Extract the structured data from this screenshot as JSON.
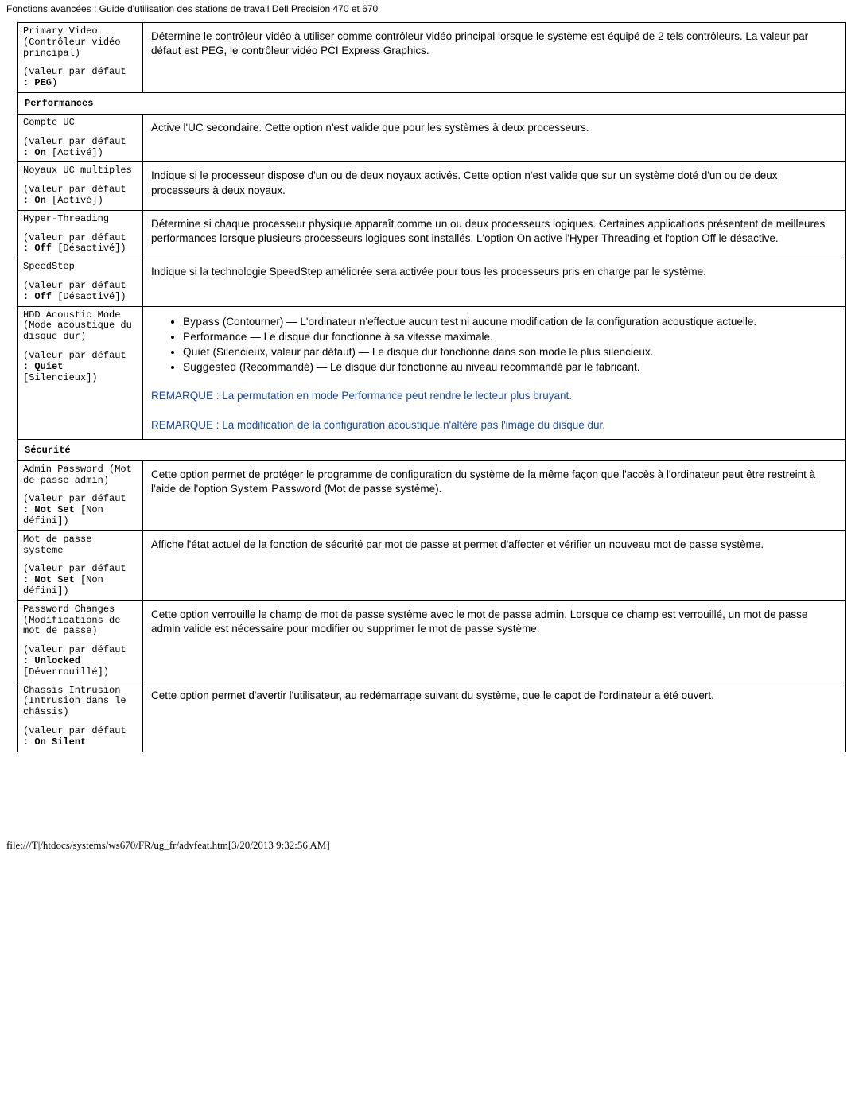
{
  "page": {
    "title": "Fonctions avancées : Guide d'utilisation des stations de travail Dell Precision 470 et 670",
    "footer": "file:///T|/htdocs/systems/ws670/FR/ug_fr/advfeat.htm[3/20/2013 9:32:56 AM]"
  },
  "sections": {
    "performances_header": "Performances",
    "securite_header": "Sécurité"
  },
  "rows": {
    "primary_video": {
      "name1": "Primary Video",
      "name2": "(Contrôleur vidéo principal)",
      "def_prefix": "(valeur par défaut : ",
      "def_value": "PEG",
      "def_suffix": ")",
      "desc": "Détermine le contrôleur vidéo à utiliser comme contrôleur vidéo principal lorsque le système est équipé de 2 tels contrôleurs. La valeur par défaut est PEG, le contrôleur vidéo PCI Express Graphics."
    },
    "compte_uc": {
      "name1": "Compte UC",
      "def_prefix": "(valeur par défaut : ",
      "def_value": "On",
      "def_suffix": " [Activé])",
      "desc": "Active l'UC secondaire. Cette option n'est valide que pour les systèmes à deux processeurs."
    },
    "noyaux_uc": {
      "name1": "Noyaux UC multiples",
      "def_prefix": "(valeur par défaut : ",
      "def_value": "On",
      "def_suffix": " [Activé])",
      "desc": "Indique si le processeur dispose d'un ou de deux noyaux activés. Cette option n'est valide que sur un système doté d'un ou de deux processeurs à deux noyaux."
    },
    "hyper_threading": {
      "name1": "Hyper-Threading",
      "def_prefix": "(valeur par défaut : ",
      "def_value": "Off",
      "def_suffix": " [Désactivé])",
      "desc": "Détermine si chaque processeur physique apparaît comme un ou deux processeurs logiques. Certaines applications présentent de meilleures performances lorsque plusieurs processeurs logiques sont installés. L'option On active l'Hyper-Threading et l'option Off le désactive."
    },
    "speedstep": {
      "name1": "SpeedStep",
      "def_prefix": "(valeur par défaut : ",
      "def_value": "Off",
      "def_suffix": " [Désactivé])",
      "desc": "Indique si la technologie SpeedStep améliorée sera activée pour tous les processeurs pris en charge par le système."
    },
    "hdd_acoustic": {
      "name1": "HDD Acoustic Mode (Mode acoustique du disque dur)",
      "def_prefix": "(valeur par défaut : ",
      "def_value": "Quiet",
      "def_suffix": " [Silencieux])",
      "opts": {
        "bypass_b": "Bypass",
        "bypass_t": " (Contourner) — L'ordinateur n'effectue aucun test ni aucune modification de la configuration acoustique actuelle.",
        "perf_b": "Performance",
        "perf_t": " — Le disque dur fonctionne à sa vitesse maximale.",
        "quiet_b": "Quiet",
        "quiet_t": " (Silencieux, valeur par défaut) — Le disque dur fonctionne dans son mode le plus silencieux.",
        "sugg_b": "Suggested",
        "sugg_t": " (Recommandé) — Le disque dur fonctionne au niveau recommandé par le fabricant."
      },
      "rem1_label": "REMARQUE :",
      "rem1_text": " La permutation en mode Performance peut rendre le lecteur plus bruyant.",
      "rem2_label": "REMARQUE :",
      "rem2_text": " La modification de la configuration acoustique n'altère pas l'image du disque dur."
    },
    "admin_pw": {
      "name1": "Admin Password (Mot de passe admin)",
      "def_prefix": "(valeur par défaut : ",
      "def_value": "Not Set",
      "def_suffix": " [Non défini])",
      "desc_a": "Cette option permet de protéger le programme de configuration du système de la même façon que l'accès à l'ordinateur peut être restreint à l'aide de l'option ",
      "desc_b": "System Password",
      "desc_c": " (Mot de passe système)."
    },
    "sys_pw": {
      "name1": "Mot de passe système",
      "def_prefix": "(valeur par défaut : ",
      "def_value": "Not Set",
      "def_suffix": " [Non défini])",
      "desc": "Affiche l'état actuel de la fonction de sécurité par mot de passe et permet d'affecter et vérifier un nouveau mot de passe système."
    },
    "pw_changes": {
      "name1": "Password Changes (Modifications de mot de passe)",
      "def_prefix": "(valeur par défaut : ",
      "def_value": "Unlocked",
      "def_suffix": " [Déverrouillé])",
      "desc": "Cette option verrouille le champ de mot de passe système avec le mot de passe admin. Lorsque ce champ est verrouillé, un mot de passe admin valide est nécessaire pour modifier ou supprimer le mot de passe système."
    },
    "chassis": {
      "name1": "Chassis Intrusion (Intrusion dans le châssis)",
      "def_prefix": "(valeur par défaut : ",
      "def_value": "On Silent",
      "desc": "Cette option permet d'avertir l'utilisateur, au redémarrage suivant du système, que le capot de l'ordinateur a été ouvert."
    }
  }
}
